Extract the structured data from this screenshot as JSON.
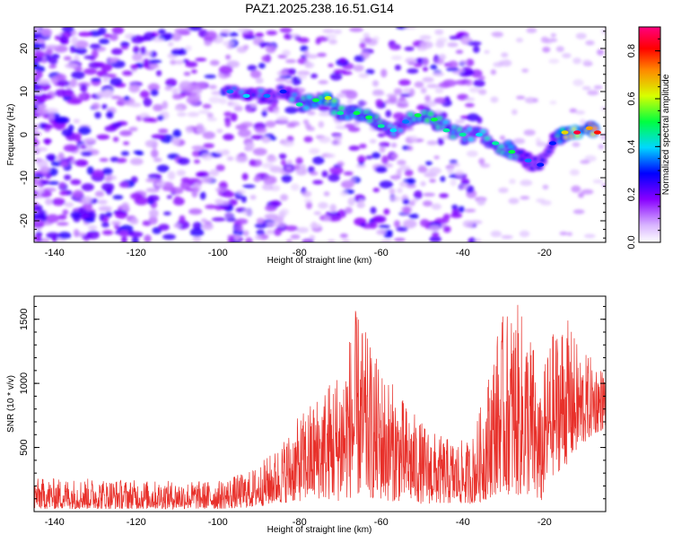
{
  "title": "PAZ1.2025.238.16.51.G14",
  "charts": [
    {
      "type": "heatmap",
      "xlabel": "Height of straight line (km)",
      "ylabel": "Frequency (Hz)",
      "xlim": [
        -145,
        -5
      ],
      "ylim": [
        -25,
        25
      ],
      "xticks": [
        -140,
        -120,
        -100,
        -80,
        -60,
        -40,
        -20
      ],
      "yticks": [
        -20,
        -10,
        0,
        10,
        20
      ],
      "colorbar": {
        "label": "Normalized spectral amplitude",
        "range": [
          0,
          0.9
        ],
        "ticks": [
          0.0,
          0.2,
          0.4,
          0.6,
          0.8
        ]
      },
      "ridge": [
        {
          "x": -97,
          "y": 10,
          "amp": 0.35
        },
        {
          "x": -93,
          "y": 9,
          "amp": 0.4
        },
        {
          "x": -88,
          "y": 9,
          "amp": 0.35
        },
        {
          "x": -84,
          "y": 10,
          "amp": 0.3
        },
        {
          "x": -80,
          "y": 7,
          "amp": 0.45
        },
        {
          "x": -76,
          "y": 8,
          "amp": 0.5
        },
        {
          "x": -73,
          "y": 8.5,
          "amp": 0.6
        },
        {
          "x": -70,
          "y": 5,
          "amp": 0.45
        },
        {
          "x": -66,
          "y": 5,
          "amp": 0.5
        },
        {
          "x": -63,
          "y": 4,
          "amp": 0.5
        },
        {
          "x": -60,
          "y": 2,
          "amp": 0.45
        },
        {
          "x": -57,
          "y": 1,
          "amp": 0.4
        },
        {
          "x": -54,
          "y": 3,
          "amp": 0.35
        },
        {
          "x": -51,
          "y": 4.5,
          "amp": 0.5
        },
        {
          "x": -47,
          "y": 3.5,
          "amp": 0.5
        },
        {
          "x": -44,
          "y": 1,
          "amp": 0.45
        },
        {
          "x": -40,
          "y": 0,
          "amp": 0.45
        },
        {
          "x": -36,
          "y": 0,
          "amp": 0.4
        },
        {
          "x": -32,
          "y": -2,
          "amp": 0.45
        },
        {
          "x": -28,
          "y": -4,
          "amp": 0.5
        },
        {
          "x": -24,
          "y": -6,
          "amp": 0.35
        },
        {
          "x": -21,
          "y": -7,
          "amp": 0.3
        },
        {
          "x": -18,
          "y": -2,
          "amp": 0.3
        },
        {
          "x": -15,
          "y": 0.5,
          "amp": 0.65
        },
        {
          "x": -12,
          "y": 0.5,
          "amp": 0.85
        },
        {
          "x": -9,
          "y": 1.5,
          "amp": 0.7
        },
        {
          "x": -7,
          "y": 0.5,
          "amp": 0.8
        }
      ]
    },
    {
      "type": "line",
      "xlabel": "Height of straight line (km)",
      "ylabel": "SNR (10 * v/v)",
      "xlim": [
        -145,
        -5
      ],
      "ylim": [
        0,
        1680
      ],
      "xticks": [
        -140,
        -120,
        -100,
        -80,
        -60,
        -40,
        -20
      ],
      "yticks": [
        500,
        1000,
        1500
      ],
      "color": "#e8302a",
      "envelope": [
        {
          "x": -145,
          "base": 20,
          "peak": 260
        },
        {
          "x": -130,
          "base": 20,
          "peak": 260
        },
        {
          "x": -115,
          "base": 20,
          "peak": 240
        },
        {
          "x": -100,
          "base": 20,
          "peak": 240
        },
        {
          "x": -92,
          "base": 30,
          "peak": 320
        },
        {
          "x": -86,
          "base": 60,
          "peak": 480
        },
        {
          "x": -80,
          "base": 80,
          "peak": 750
        },
        {
          "x": -75,
          "base": 100,
          "peak": 950
        },
        {
          "x": -70,
          "base": 80,
          "peak": 1150
        },
        {
          "x": -66,
          "base": 120,
          "peak": 1600
        },
        {
          "x": -62,
          "base": 100,
          "peak": 1250
        },
        {
          "x": -58,
          "base": 80,
          "peak": 1050
        },
        {
          "x": -54,
          "base": 80,
          "peak": 850
        },
        {
          "x": -50,
          "base": 60,
          "peak": 700
        },
        {
          "x": -46,
          "base": 60,
          "peak": 600
        },
        {
          "x": -42,
          "base": 60,
          "peak": 560
        },
        {
          "x": -38,
          "base": 60,
          "peak": 550
        },
        {
          "x": -35,
          "base": 80,
          "peak": 900
        },
        {
          "x": -31,
          "base": 150,
          "peak": 1500
        },
        {
          "x": -27,
          "base": 120,
          "peak": 1640
        },
        {
          "x": -23,
          "base": 120,
          "peak": 1400
        },
        {
          "x": -21,
          "base": 40,
          "peak": 900
        },
        {
          "x": -19,
          "base": 250,
          "peak": 1350
        },
        {
          "x": -15,
          "base": 350,
          "peak": 1550
        },
        {
          "x": -11,
          "base": 500,
          "peak": 1250
        },
        {
          "x": -8,
          "base": 600,
          "peak": 1200
        },
        {
          "x": -5,
          "base": 650,
          "peak": 1100
        }
      ]
    }
  ]
}
